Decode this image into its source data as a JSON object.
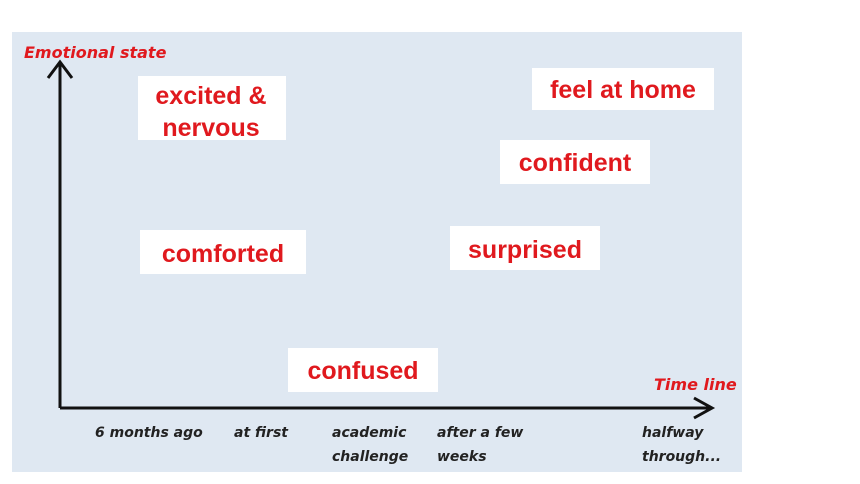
{
  "axes": {
    "y_label": "Emotional state",
    "x_label": "Time line"
  },
  "timeline": [
    [
      "6 months ago"
    ],
    [
      "at first"
    ],
    [
      "academic",
      "challenge"
    ],
    [
      "after a few",
      "weeks"
    ],
    [
      "halfway",
      "through..."
    ]
  ],
  "emotions": [
    [
      "excited &",
      "nervous"
    ],
    [
      "feel at home"
    ],
    [
      "confident"
    ],
    [
      "comforted"
    ],
    [
      "surprised"
    ],
    [
      "confused"
    ]
  ]
}
